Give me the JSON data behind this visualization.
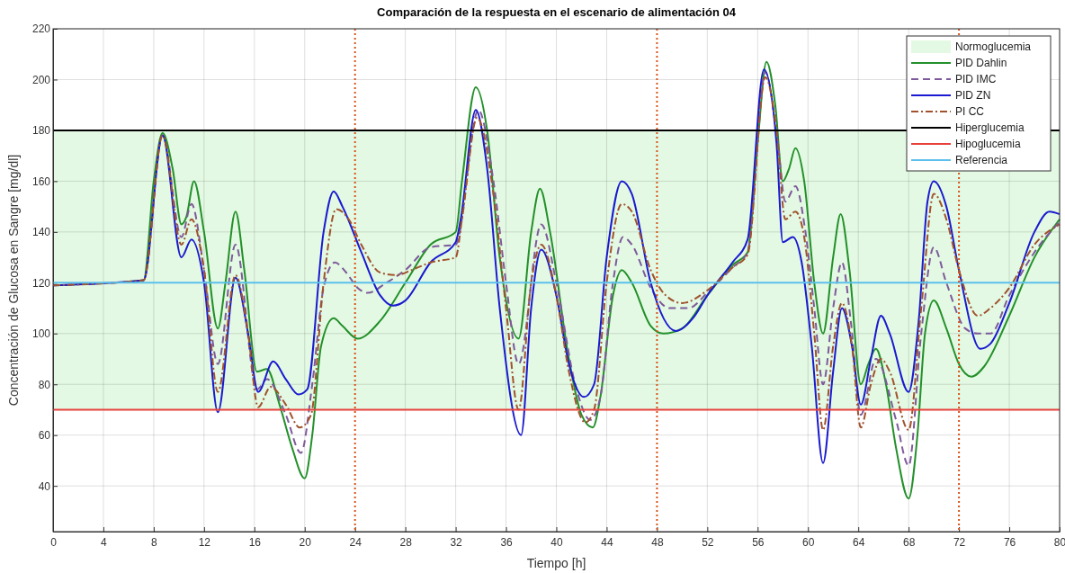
{
  "chart_data": {
    "type": "line",
    "title": "Comparación de la respuesta en el escenario de alimentación 04",
    "xlabel": "Tiempo [h]",
    "ylabel": "Concentración de Glucosa en Sangre [mg/dl]",
    "xlim": [
      0,
      80
    ],
    "xticks": [
      0,
      4,
      8,
      12,
      16,
      20,
      24,
      28,
      32,
      36,
      40,
      44,
      48,
      52,
      56,
      60,
      64,
      68,
      72,
      76,
      80
    ],
    "ylim": [
      22,
      220
    ],
    "yticks": [
      40,
      60,
      80,
      100,
      120,
      140,
      160,
      180,
      200,
      220
    ],
    "grid": true,
    "legend": "top right",
    "marker": "none",
    "bands": [
      {
        "axis": "y",
        "from": 70,
        "to": 180,
        "label": "Normoglucemia",
        "color": "#e3f9e3"
      }
    ],
    "ref_lines": [
      {
        "axis": "x",
        "value": 24,
        "color": "#d95319",
        "line_style": "dotted"
      },
      {
        "axis": "x",
        "value": 48,
        "color": "#d95319",
        "line_style": "dotted"
      },
      {
        "axis": "x",
        "value": 72,
        "color": "#d95319",
        "line_style": "dotted"
      }
    ],
    "series": [
      {
        "name": "PID Dahlin",
        "color": "#23902a",
        "line_style": "solid",
        "x": [
          6,
          7.2,
          8,
          8.7,
          9.5,
          10.2,
          10.6,
          11.2,
          12,
          13.1,
          13.7,
          14.5,
          15.2,
          16.2,
          17,
          18,
          19,
          20,
          20.6,
          21.3,
          22.3,
          23,
          24.2,
          26,
          28,
          30,
          32,
          32.5,
          33.6,
          34.5,
          35.5,
          37,
          38,
          38.7,
          39.5,
          41,
          42,
          42.9,
          43.5,
          44.5,
          45.2,
          46,
          47.5,
          48.5,
          50,
          52,
          54,
          55.2,
          56,
          56.7,
          57.4,
          58,
          58.5,
          59,
          59.7,
          60.5,
          61.2,
          62,
          62.6,
          63.3,
          64.2,
          64.8,
          65.4,
          66.2,
          67,
          68,
          68.7,
          69.3,
          70,
          71,
          72,
          73,
          74,
          76,
          78,
          80
        ],
        "values": [
          120.5,
          121,
          160,
          179,
          165,
          143,
          146,
          160,
          140,
          102,
          120,
          148,
          125,
          85,
          86,
          72,
          55,
          43,
          60,
          95,
          106,
          103,
          98,
          105,
          120,
          135,
          140,
          160,
          197,
          180,
          130,
          98,
          140,
          157,
          140,
          90,
          68,
          63,
          75,
          115,
          125,
          120,
          103,
          100,
          102,
          115,
          127,
          132,
          175,
          207,
          190,
          160,
          165,
          173,
          160,
          120,
          100,
          130,
          147,
          125,
          80,
          88,
          94,
          80,
          55,
          35,
          60,
          100,
          113,
          102,
          88,
          83,
          87,
          107,
          130,
          145
        ]
      },
      {
        "name": "PID IMC",
        "color": "#7e5a9b",
        "line_style": "dashed",
        "x": [
          0,
          7.2,
          8.7,
          10.2,
          11,
          12,
          13.1,
          14.5,
          16.2,
          17,
          18.5,
          19.7,
          20.6,
          21.5,
          22.4,
          23.3,
          24.2,
          25,
          26.5,
          28,
          30,
          32,
          33.8,
          35,
          36,
          37,
          38.8,
          40,
          41.5,
          42.7,
          43.5,
          44.5,
          45.3,
          46,
          47.5,
          49,
          50.5,
          52,
          54,
          55.2,
          56.6,
          57.6,
          58.2,
          59,
          59.8,
          60.5,
          61.2,
          62,
          62.7,
          63.4,
          64.2,
          65.4,
          67,
          68,
          69,
          70,
          71,
          72.5,
          73.5,
          74.5,
          76,
          78,
          80
        ],
        "values": [
          119,
          121,
          178,
          138,
          151,
          125,
          88,
          135,
          78,
          82,
          68,
          53,
          80,
          118,
          128,
          124,
          118,
          116,
          120,
          125,
          134,
          135,
          188,
          160,
          120,
          88,
          143,
          120,
          80,
          66,
          75,
          120,
          138,
          135,
          118,
          110,
          110,
          116,
          126,
          132,
          203,
          175,
          152,
          158,
          140,
          110,
          80,
          110,
          128,
          105,
          68,
          90,
          66,
          48,
          100,
          134,
          120,
          102,
          100,
          100,
          115,
          132,
          144
        ]
      },
      {
        "name": "PID ZN",
        "color": "#1a1ad0",
        "line_style": "solid",
        "x": [
          0,
          7.2,
          8.7,
          10.2,
          11,
          12,
          13.1,
          14.5,
          15.5,
          16.3,
          17.5,
          18.5,
          19.5,
          20.2,
          21.5,
          22.3,
          23,
          24.5,
          26,
          27,
          28,
          30,
          32,
          32.4,
          33.6,
          34.5,
          35.5,
          37.2,
          38,
          38.8,
          40,
          41,
          42.2,
          43,
          44,
          45.2,
          46,
          47.5,
          49.5,
          51,
          52,
          54,
          55.2,
          56.5,
          57.5,
          58,
          58.8,
          59.5,
          60.3,
          61.2,
          62,
          62.7,
          63.5,
          64.2,
          65,
          65.8,
          66.5,
          68,
          68.8,
          69.5,
          70,
          71,
          72,
          73.7,
          74.5,
          76,
          78,
          79.2,
          80
        ],
        "values": [
          119,
          121,
          178,
          130,
          137,
          120,
          69,
          122,
          100,
          77,
          89,
          82,
          76,
          78,
          140,
          156,
          150,
          132,
          115,
          111,
          113,
          128,
          136,
          145,
          188,
          165,
          110,
          60,
          110,
          133,
          115,
          88,
          75,
          80,
          130,
          160,
          155,
          120,
          101,
          107,
          115,
          128,
          137,
          204,
          175,
          136,
          138,
          128,
          95,
          49,
          85,
          110,
          95,
          72,
          90,
          107,
          100,
          77,
          105,
          152,
          160,
          150,
          125,
          94,
          96,
          112,
          140,
          148,
          147
        ]
      },
      {
        "name": "PI CC",
        "color": "#a0522d",
        "line_style": "dashdot",
        "x": [
          0,
          7.2,
          8.7,
          10.2,
          11,
          12,
          13.1,
          14.5,
          15.5,
          16.3,
          17.3,
          18.5,
          19.6,
          20.5,
          21.5,
          22.5,
          23.5,
          24.5,
          26,
          27.3,
          28.5,
          30,
          32,
          32.5,
          33.7,
          35,
          36,
          37,
          38,
          38.8,
          40,
          41,
          42.3,
          43,
          44,
          45.2,
          46,
          47.5,
          48.7,
          50,
          52,
          54,
          55.2,
          56.6,
          57.5,
          58.2,
          59,
          59.7,
          60.5,
          61.2,
          62,
          62.7,
          63.5,
          64.2,
          65,
          65.8,
          66.5,
          68,
          69,
          70,
          71,
          72,
          73.5,
          74.5,
          76,
          78,
          80
        ],
        "values": [
          119,
          121,
          178,
          135,
          145,
          125,
          77,
          123,
          100,
          71,
          79,
          72,
          63,
          68,
          120,
          149,
          145,
          135,
          124,
          123,
          125,
          128,
          130,
          145,
          185,
          155,
          110,
          70,
          120,
          135,
          115,
          85,
          65,
          70,
          120,
          151,
          148,
          125,
          115,
          112,
          117,
          126,
          131,
          201,
          180,
          145,
          148,
          138,
          100,
          62,
          95,
          112,
          95,
          63,
          80,
          90,
          85,
          62,
          110,
          155,
          145,
          125,
          107,
          110,
          118,
          135,
          143
        ]
      },
      {
        "name": "Hiperglucemia",
        "color": "#000000",
        "line_style": "solid",
        "x": [
          0,
          80
        ],
        "values": [
          180,
          180
        ]
      },
      {
        "name": "Hipoglucemia",
        "color": "#e8413c",
        "line_style": "solid",
        "x": [
          0,
          80
        ],
        "values": [
          70,
          70
        ]
      },
      {
        "name": "Referencia",
        "color": "#5bc0eb",
        "line_style": "solid",
        "x": [
          0,
          80
        ],
        "values": [
          120,
          120
        ]
      }
    ]
  }
}
